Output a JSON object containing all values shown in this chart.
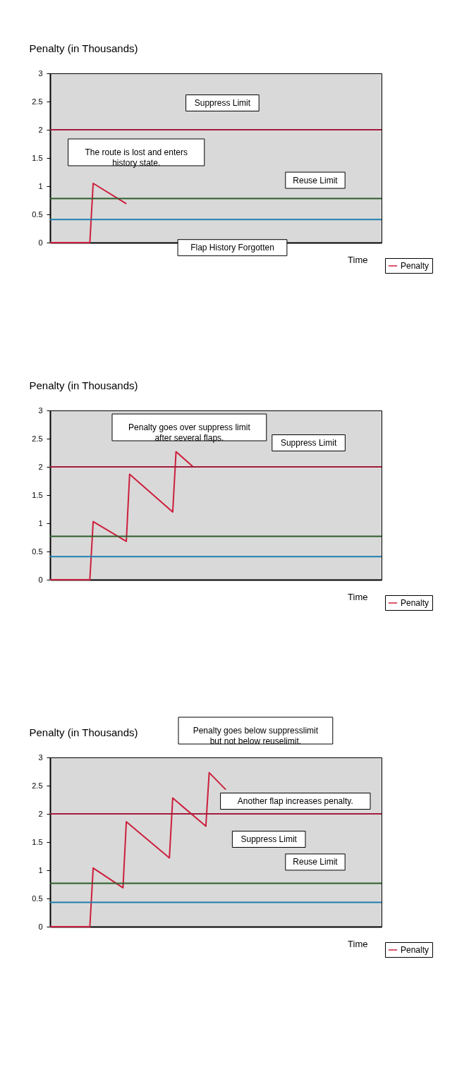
{
  "chart_data": [
    {
      "type": "line",
      "xlabel": "Time",
      "ylabel": "Penalty (in Thousands)",
      "ylim": [
        0,
        3
      ],
      "yticks": [
        0,
        0.5,
        1,
        1.5,
        2,
        2.5,
        3
      ],
      "tick_labels": "y",
      "grid": false,
      "legend": "bottom right",
      "marker": "none",
      "line_style": "solid",
      "categories": [
        null,
        null,
        null,
        null,
        null,
        null,
        null,
        null,
        null,
        null,
        null,
        null,
        null,
        null,
        null,
        null,
        null,
        null,
        null,
        null,
        null,
        null,
        null,
        null,
        null,
        null,
        null,
        null,
        null,
        null,
        null,
        null,
        null,
        null,
        null,
        null,
        null,
        null,
        null,
        null,
        null,
        null,
        null,
        null,
        null,
        null,
        null,
        null,
        null,
        null,
        null,
        null,
        null,
        null,
        null,
        null,
        null,
        null,
        null,
        null,
        null,
        null,
        null,
        null,
        null,
        null,
        null,
        null,
        null,
        null,
        null,
        null,
        null,
        null,
        null,
        null,
        null,
        null,
        null,
        null,
        null,
        null,
        null,
        null,
        null,
        null,
        null,
        null,
        null,
        null,
        null,
        null,
        null,
        null,
        null,
        null,
        null,
        null,
        null,
        null,
        null
      ],
      "series": [
        {
          "name": "Penalty",
          "color": "#cc1f3c",
          "values": [
            0,
            null,
            null,
            null,
            null,
            null,
            null,
            null,
            null,
            null,
            null,
            null,
            0,
            1.05,
            null,
            null,
            null,
            null,
            null,
            null,
            null,
            null,
            null,
            0.69,
            null,
            null,
            null,
            null,
            null,
            null,
            null,
            null,
            null,
            null,
            null,
            null,
            null,
            null,
            null,
            null,
            null,
            null,
            null,
            null,
            null,
            null,
            null,
            null,
            null,
            null,
            null,
            null,
            null,
            null,
            null,
            null,
            null,
            null,
            null,
            null,
            null,
            null,
            null,
            null,
            null,
            null,
            null,
            null,
            null,
            null,
            null,
            null,
            null,
            null,
            null,
            null,
            null,
            null,
            null,
            null,
            null,
            null,
            null,
            null,
            null,
            null,
            null,
            null,
            null,
            null,
            null,
            null,
            null,
            null,
            null,
            null,
            null,
            null,
            null,
            null,
            null
          ]
        }
      ],
      "ref_lines": [
        {
          "axis": "y",
          "value": 2,
          "label": "Suppress Limit",
          "color": "#a51c3c"
        },
        {
          "axis": "y",
          "value": 0.78,
          "label": "Reuse Limit",
          "color": "#2e5e2a"
        },
        {
          "axis": "y",
          "value": 0.41,
          "label": "Flap History Forgotten",
          "color": "#1f7fb0"
        }
      ],
      "annotations": [
        "The route is lost and enters history state."
      ]
    },
    {
      "type": "line",
      "xlabel": "Time",
      "ylabel": "Penalty (in Thousands)",
      "ylim": [
        0,
        3
      ],
      "yticks": [
        0,
        0.5,
        1,
        1.5,
        2,
        2.5,
        3
      ],
      "tick_labels": "y",
      "grid": false,
      "legend": "bottom right",
      "marker": "none",
      "line_style": "solid",
      "categories": [
        null,
        null,
        null,
        null,
        null,
        null,
        null,
        null,
        null,
        null,
        null,
        null,
        null,
        null,
        null,
        null,
        null,
        null,
        null,
        null,
        null,
        null,
        null,
        null,
        null,
        null,
        null,
        null,
        null,
        null,
        null,
        null,
        null,
        null,
        null,
        null,
        null,
        null,
        null,
        null,
        null,
        null,
        null,
        null,
        null,
        null,
        null,
        null,
        null,
        null,
        null,
        null,
        null,
        null,
        null,
        null,
        null,
        null,
        null,
        null,
        null,
        null,
        null,
        null,
        null,
        null,
        null,
        null,
        null,
        null,
        null,
        null,
        null,
        null,
        null,
        null,
        null,
        null,
        null,
        null,
        null,
        null,
        null,
        null,
        null,
        null,
        null,
        null,
        null,
        null,
        null,
        null,
        null,
        null,
        null,
        null,
        null,
        null,
        null,
        null,
        null
      ],
      "series": [
        {
          "name": "Penalty",
          "color": "#cc1f3c",
          "values": [
            0,
            null,
            null,
            null,
            null,
            null,
            null,
            null,
            null,
            null,
            null,
            null,
            0,
            1.03,
            null,
            null,
            null,
            null,
            null,
            null,
            null,
            null,
            null,
            0.68,
            1.87,
            null,
            null,
            null,
            null,
            null,
            null,
            null,
            null,
            null,
            null,
            null,
            null,
            1.2,
            2.27,
            null,
            null,
            null,
            null,
            2.01,
            null,
            null,
            null,
            null,
            null,
            null,
            null,
            null,
            null,
            null,
            null,
            null,
            null,
            null,
            null,
            null,
            null,
            null,
            null,
            null,
            null,
            null,
            null,
            null,
            null,
            null,
            null,
            null,
            null,
            null,
            null,
            null,
            null,
            null,
            null,
            null,
            null,
            null,
            null,
            null,
            null,
            null,
            null,
            null,
            null,
            null,
            null,
            null,
            null,
            null,
            null,
            null,
            null,
            null,
            null,
            null,
            null
          ]
        }
      ],
      "ref_lines": [
        {
          "axis": "y",
          "value": 2,
          "label": "Suppress Limit",
          "color": "#a51c3c"
        },
        {
          "axis": "y",
          "value": 0.77,
          "color": "#2e5e2a"
        },
        {
          "axis": "y",
          "value": 0.41,
          "color": "#1f7fb0"
        }
      ],
      "annotations": [
        "Penalty goes over suppress limit after several flaps."
      ]
    },
    {
      "type": "line",
      "xlabel": "Time",
      "ylabel": "Penalty (in Thousands)",
      "ylim": [
        0,
        3
      ],
      "yticks": [
        0,
        0.5,
        1,
        1.5,
        2,
        2.5,
        3
      ],
      "tick_labels": "y",
      "grid": false,
      "legend": "bottom right",
      "marker": "none",
      "line_style": "solid",
      "categories": [
        null,
        null,
        null,
        null,
        null,
        null,
        null,
        null,
        null,
        null,
        null,
        null,
        null,
        null,
        null,
        null,
        null,
        null,
        null,
        null,
        null,
        null,
        null,
        null,
        null,
        null,
        null,
        null,
        null,
        null,
        null,
        null,
        null,
        null,
        null,
        null,
        null,
        null,
        null,
        null,
        null,
        null,
        null,
        null,
        null,
        null,
        null,
        null,
        null,
        null,
        null,
        null,
        null,
        null,
        null,
        null,
        null,
        null,
        null,
        null,
        null,
        null,
        null,
        null,
        null,
        null,
        null,
        null,
        null,
        null,
        null,
        null,
        null,
        null,
        null,
        null,
        null,
        null,
        null,
        null,
        null,
        null,
        null,
        null,
        null,
        null,
        null,
        null,
        null,
        null,
        null,
        null,
        null,
        null,
        null,
        null,
        null,
        null,
        null,
        null,
        null
      ],
      "series": [
        {
          "name": "Penalty",
          "color": "#cc1f3c",
          "values": [
            0,
            null,
            null,
            null,
            null,
            null,
            null,
            null,
            null,
            null,
            null,
            null,
            0,
            1.04,
            null,
            null,
            null,
            null,
            null,
            null,
            null,
            null,
            0.69,
            1.86,
            null,
            null,
            null,
            null,
            null,
            null,
            null,
            null,
            null,
            null,
            null,
            null,
            1.22,
            2.28,
            null,
            null,
            null,
            null,
            null,
            null,
            null,
            null,
            null,
            1.78,
            2.73,
            null,
            null,
            null,
            null,
            2.43,
            null,
            null,
            null,
            null,
            null,
            null,
            null,
            null,
            null,
            null,
            null,
            null,
            null,
            null,
            null,
            null,
            null,
            null,
            null,
            null,
            null,
            null,
            null,
            null,
            null,
            null,
            null,
            null,
            null,
            null,
            null,
            null,
            null,
            null,
            null,
            null,
            null,
            null,
            null,
            null,
            null,
            null,
            null,
            null,
            null,
            null,
            null
          ]
        }
      ],
      "ref_lines": [
        {
          "axis": "y",
          "value": 2,
          "label": "Suppress Limit",
          "color": "#a51c3c"
        },
        {
          "axis": "y",
          "value": 0.77,
          "label": "Reuse Limit",
          "color": "#2e5e2a"
        },
        {
          "axis": "y",
          "value": 0.43,
          "color": "#1f7fb0"
        }
      ],
      "annotations": [
        "Penalty goes below suppresslimit but not below reuselimit.",
        "Another flap increases penalty."
      ]
    }
  ]
}
